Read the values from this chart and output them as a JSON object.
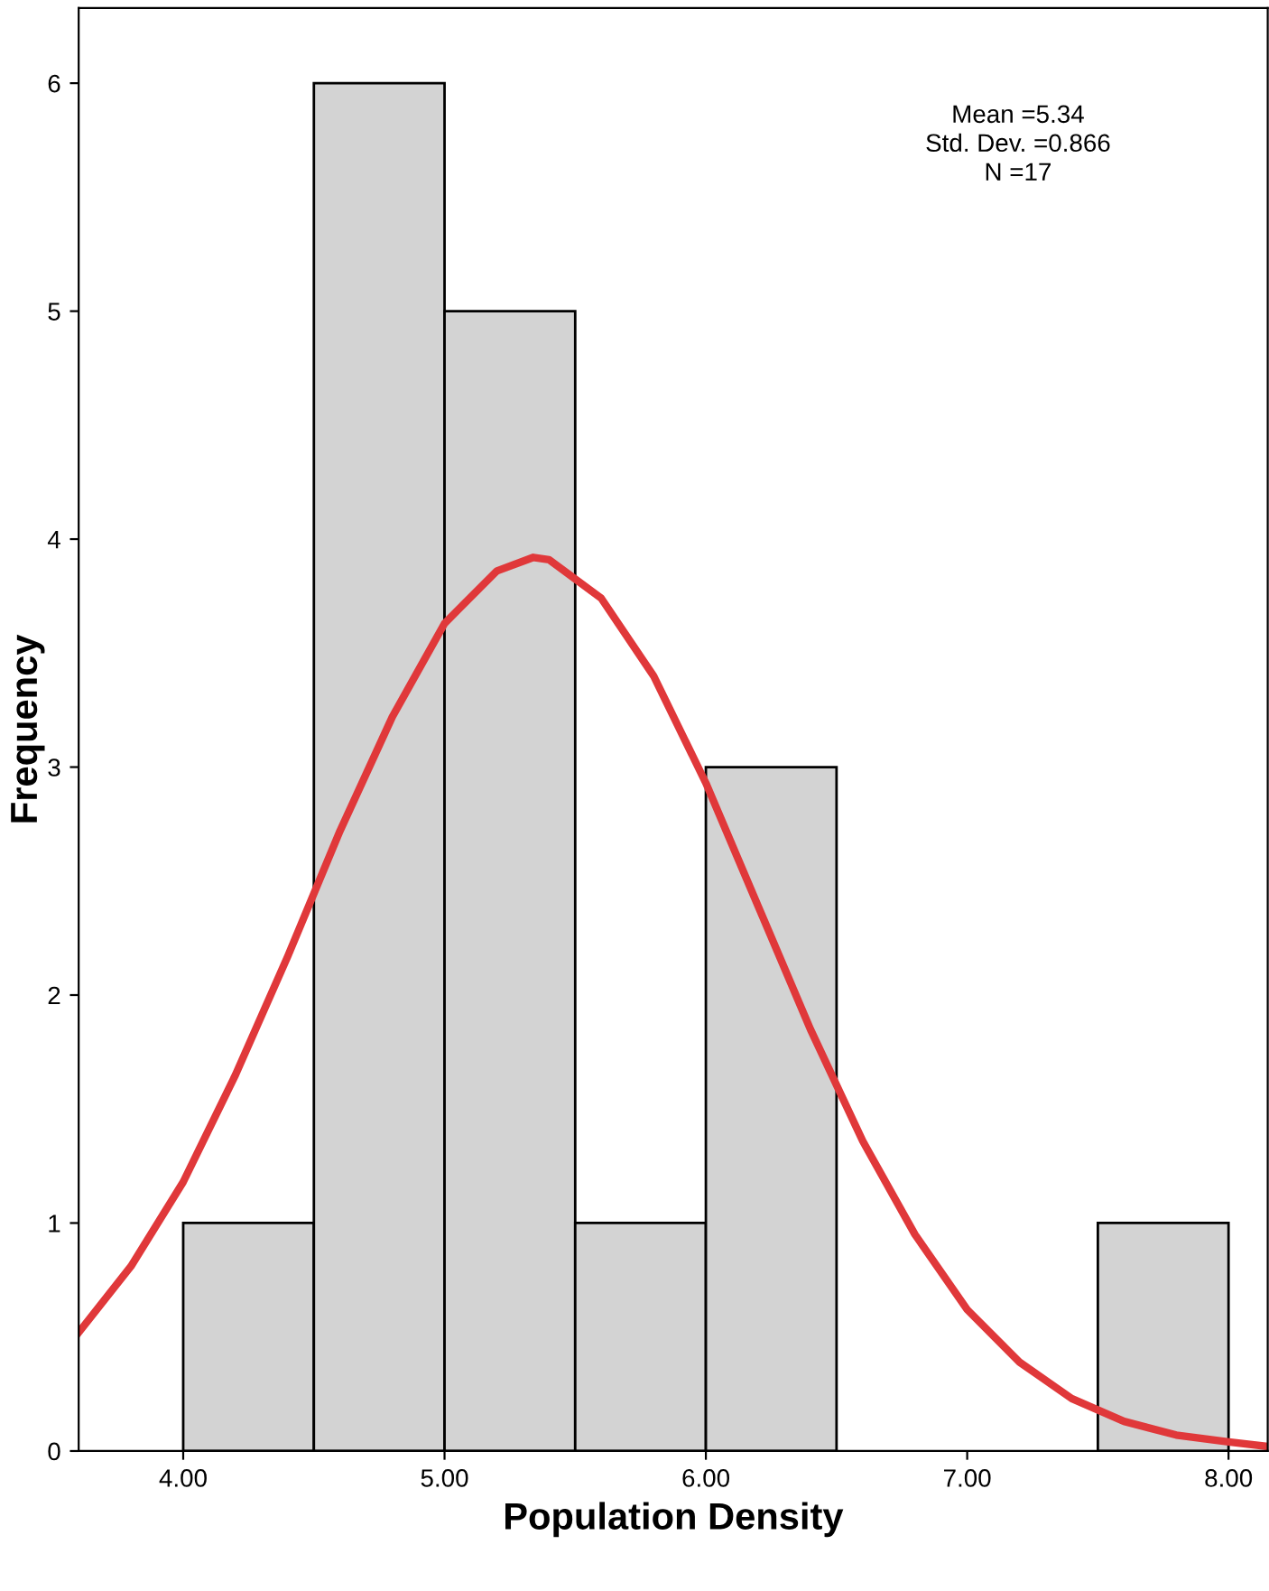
{
  "chart_data": {
    "type": "histogram",
    "xlabel": "Population Density",
    "ylabel": "Frequency",
    "bins": [
      4.0,
      4.5,
      5.0,
      5.5,
      6.0,
      6.5,
      7.0,
      7.5,
      8.0
    ],
    "values": [
      1,
      6,
      5,
      1,
      3,
      0,
      0,
      1
    ],
    "color": "#d3d3d3",
    "series": [
      {
        "type": "line",
        "color": "#e0383a",
        "x": [
          3.6,
          3.8,
          4.0,
          4.2,
          4.4,
          4.6,
          4.8,
          5.0,
          5.2,
          5.34,
          5.4,
          5.6,
          5.8,
          6.0,
          6.2,
          6.4,
          6.6,
          6.8,
          7.0,
          7.2,
          7.4,
          7.6,
          7.8,
          8.0,
          8.15
        ],
        "values": [
          0.52,
          0.81,
          1.18,
          1.65,
          2.17,
          2.72,
          3.22,
          3.63,
          3.86,
          3.92,
          3.91,
          3.74,
          3.4,
          2.93,
          2.39,
          1.85,
          1.36,
          0.95,
          0.62,
          0.39,
          0.23,
          0.13,
          0.07,
          0.04,
          0.02
        ]
      }
    ],
    "xlim": [
      3.6,
      8.15
    ],
    "ylim": [
      0,
      6.33
    ],
    "xticks": [
      {
        "value": 4,
        "label": "4.00"
      },
      {
        "value": 5,
        "label": "5.00"
      },
      {
        "value": 6,
        "label": "6.00"
      },
      {
        "value": 7,
        "label": "7.00"
      },
      {
        "value": 8,
        "label": "8.00"
      }
    ],
    "yticks": [
      0,
      1,
      2,
      3,
      4,
      5,
      6
    ],
    "grid": false,
    "annotations": [
      "Mean =5.34",
      "Std. Dev. =0.866",
      "N =17"
    ]
  }
}
